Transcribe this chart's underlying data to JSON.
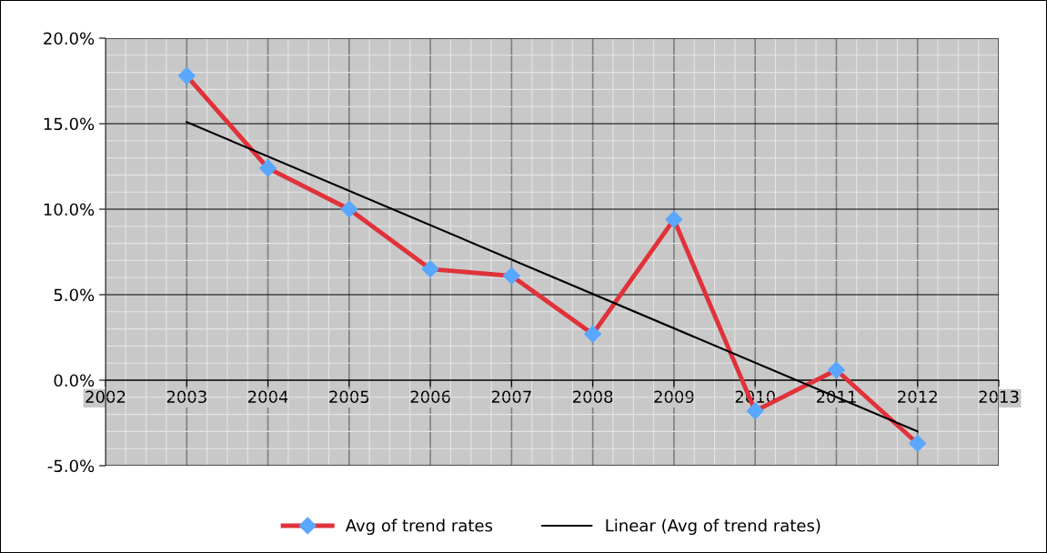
{
  "chart_data": {
    "type": "line",
    "x": [
      2003,
      2004,
      2005,
      2006,
      2007,
      2008,
      2009,
      2010,
      2011,
      2012
    ],
    "series": [
      {
        "name": "Avg of trend rates",
        "color": "#e0323a",
        "values": [
          17.8,
          12.4,
          10.0,
          6.5,
          6.1,
          2.7,
          9.4,
          -1.8,
          0.6,
          -3.7
        ],
        "marker": "diamond",
        "colors": [
          "#5aa7ff",
          "#5aa7ff",
          "#5aa7ff",
          "#5aa7ff",
          "#5aa7ff",
          "#5aa7ff",
          "#5aa7ff",
          "#5aa7ff",
          "#5aa7ff",
          "#5aa7ff"
        ]
      },
      {
        "name": "Linear (Avg of trend rates)",
        "color": "#000000",
        "type": "line",
        "x": [
          2003,
          2012
        ],
        "values": [
          15.1,
          -3.0
        ],
        "marker": "none"
      }
    ],
    "xlim": [
      2002,
      2013
    ],
    "xticks": [
      2002,
      2003,
      2004,
      2005,
      2006,
      2007,
      2008,
      2009,
      2010,
      2011,
      2012,
      2013
    ],
    "ylim": [
      -5,
      20
    ],
    "yticks": [
      {
        "value": -5,
        "label": "-5.0%"
      },
      {
        "value": 0,
        "label": "0.0%"
      },
      {
        "value": 5,
        "label": "5.0%"
      },
      {
        "value": 10,
        "label": "10.0%"
      },
      {
        "value": 15,
        "label": "15.0%"
      },
      {
        "value": 20,
        "label": "20.0%"
      }
    ],
    "grid": true,
    "legend": "bottom",
    "line_style": "solid"
  }
}
